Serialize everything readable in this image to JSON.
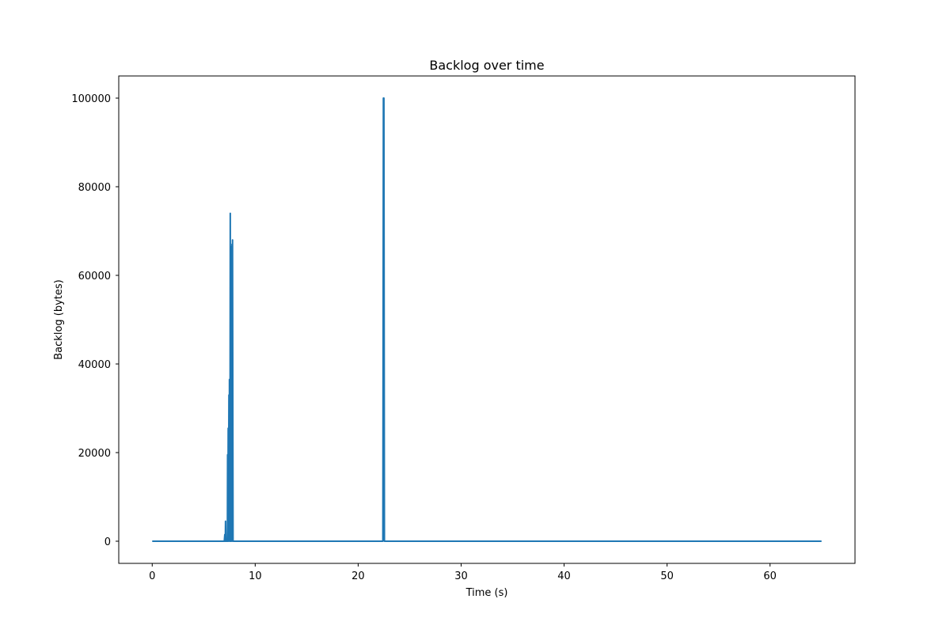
{
  "chart_data": {
    "type": "line",
    "title": "Backlog over time",
    "xlabel": "Time (s)",
    "ylabel": "Backlog (bytes)",
    "xlim": [
      -3.25,
      68.25
    ],
    "ylim": [
      -5000,
      105000
    ],
    "xticks": [
      0,
      10,
      20,
      30,
      40,
      50,
      60
    ],
    "yticks": [
      0,
      20000,
      40000,
      60000,
      80000,
      100000
    ],
    "grid": false,
    "series": [
      {
        "color": "#1f77b4",
        "x": [
          0,
          7.0,
          7.05,
          7.1,
          7.12,
          7.15,
          7.2,
          7.3,
          7.32,
          7.35,
          7.38,
          7.4,
          7.45,
          7.48,
          7.5,
          7.55,
          7.58,
          7.6,
          7.62,
          7.65,
          7.7,
          7.72,
          7.75,
          7.78,
          7.8,
          7.85,
          7.9,
          7.95,
          8.0,
          22.4,
          22.45,
          22.5,
          22.55,
          65
        ],
        "y": [
          0,
          0,
          1500,
          0,
          4500,
          0,
          0,
          0,
          19500,
          0,
          25500,
          0,
          33000,
          0,
          36500,
          0,
          74000,
          0,
          65000,
          0,
          66500,
          0,
          67000,
          0,
          68000,
          0,
          0,
          0,
          0,
          0,
          100000,
          100000,
          0,
          0
        ]
      }
    ]
  }
}
